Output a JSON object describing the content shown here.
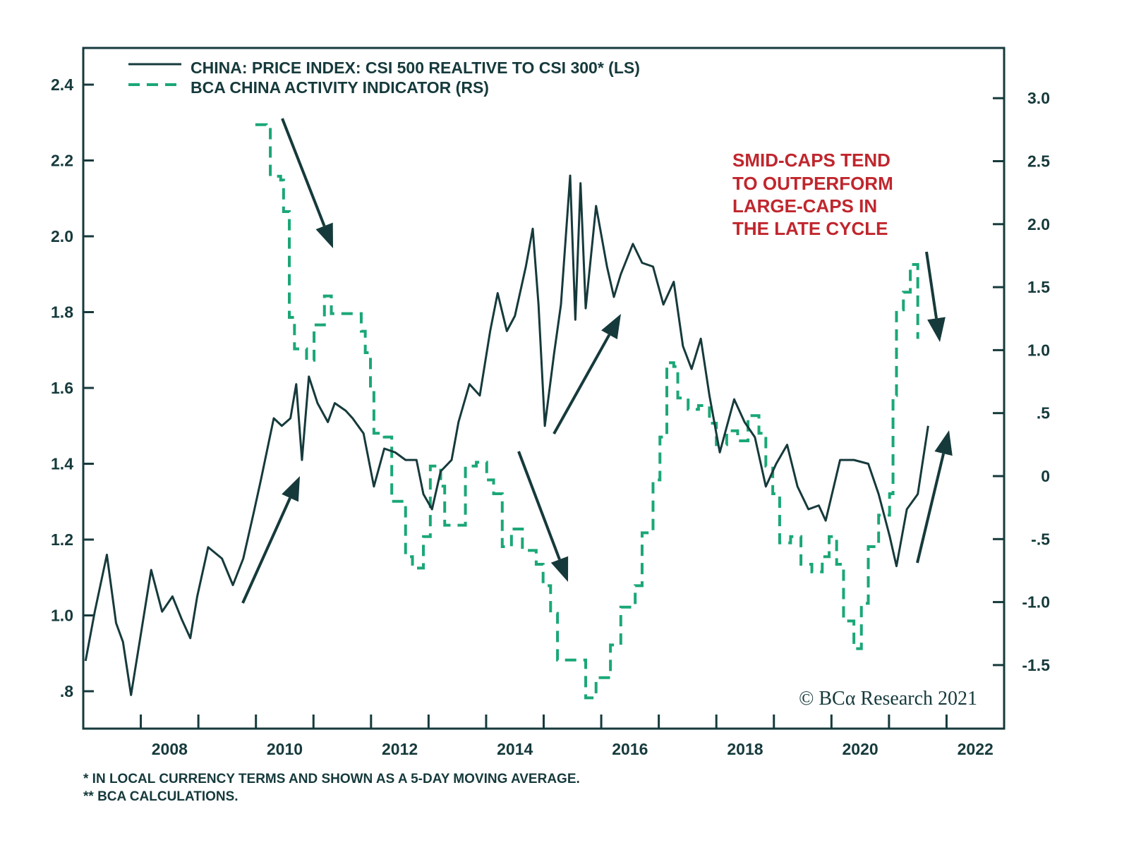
{
  "chart_data": {
    "type": "line",
    "title": "",
    "xlim": [
      2007,
      2023
    ],
    "x_ticks": [
      "2008",
      "2010",
      "2012",
      "2014",
      "2016",
      "2018",
      "2020",
      "2022"
    ],
    "ylim_left": [
      0.8,
      2.4
    ],
    "y_ticks_left": [
      "2.4",
      "2.2",
      "2.0",
      "1.8",
      "1.6",
      "1.4",
      "1.2",
      "1.0",
      ".8"
    ],
    "y_ticks_left_values": [
      2.4,
      2.2,
      2.0,
      1.8,
      1.6,
      1.4,
      1.2,
      1.0,
      0.8
    ],
    "ylim_right": [
      -1.5,
      3.0
    ],
    "y_ticks_right": [
      "3.0",
      "2.5",
      "2.0",
      "1.5",
      "1.0",
      ".5",
      "0",
      "-.5",
      "-1.0",
      "-1.5"
    ],
    "y_ticks_right_values": [
      3.0,
      2.5,
      2.0,
      1.5,
      1.0,
      0.5,
      0,
      -0.5,
      -1.0,
      -1.5
    ],
    "grid": false,
    "legend_position": "top-left",
    "series": [
      {
        "name": "CHINA: PRICE INDEX: CSI 500 REALTIVE TO CSI 300* (LS)",
        "axis": "left",
        "style": "solid",
        "color": "#163a3c",
        "x": [
          2007.04,
          2007.2,
          2007.41,
          2007.57,
          2007.69,
          2007.83,
          2008.0,
          2008.18,
          2008.37,
          2008.55,
          2008.71,
          2008.86,
          2008.98,
          2009.17,
          2009.41,
          2009.6,
          2009.78,
          2009.96,
          2010.09,
          2010.31,
          2010.45,
          2010.6,
          2010.7,
          2010.8,
          2010.92,
          2011.07,
          2011.25,
          2011.37,
          2011.56,
          2011.68,
          2011.87,
          2012.05,
          2012.23,
          2012.42,
          2012.6,
          2012.79,
          2012.91,
          2013.06,
          2013.21,
          2013.4,
          2013.52,
          2013.71,
          2013.89,
          2014.07,
          2014.2,
          2014.36,
          2014.5,
          2014.69,
          2014.81,
          2014.91,
          2015.02,
          2015.18,
          2015.3,
          2015.46,
          2015.55,
          2015.64,
          2015.73,
          2015.91,
          2016.1,
          2016.22,
          2016.34,
          2016.55,
          2016.71,
          2016.9,
          2017.08,
          2017.26,
          2017.42,
          2017.57,
          2017.73,
          2017.88,
          2018.06,
          2018.31,
          2018.49,
          2018.67,
          2018.86,
          2019.04,
          2019.23,
          2019.41,
          2019.6,
          2019.78,
          2019.9,
          2020.15,
          2020.39,
          2020.64,
          2020.82,
          2021.01,
          2021.13,
          2021.31,
          2021.5,
          2021.68
        ],
        "values": [
          0.88,
          1.01,
          1.16,
          0.98,
          0.93,
          0.79,
          0.95,
          1.12,
          1.01,
          1.05,
          0.99,
          0.94,
          1.05,
          1.18,
          1.15,
          1.08,
          1.15,
          1.27,
          1.36,
          1.52,
          1.5,
          1.52,
          1.61,
          1.41,
          1.63,
          1.56,
          1.51,
          1.56,
          1.54,
          1.52,
          1.48,
          1.34,
          1.44,
          1.43,
          1.41,
          1.41,
          1.32,
          1.28,
          1.38,
          1.41,
          1.51,
          1.61,
          1.58,
          1.75,
          1.85,
          1.75,
          1.79,
          1.92,
          2.02,
          1.82,
          1.5,
          1.69,
          1.82,
          2.16,
          1.78,
          2.14,
          1.81,
          2.08,
          1.92,
          1.84,
          1.9,
          1.98,
          1.93,
          1.92,
          1.82,
          1.88,
          1.71,
          1.65,
          1.73,
          1.58,
          1.43,
          1.57,
          1.51,
          1.47,
          1.34,
          1.4,
          1.45,
          1.34,
          1.28,
          1.29,
          1.25,
          1.41,
          1.41,
          1.4,
          1.32,
          1.21,
          1.13,
          1.28,
          1.32,
          1.5
        ]
      },
      {
        "name": "BCA CHINA ACTIVITY INDICATOR (RS)",
        "axis": "right",
        "style": "dashed",
        "color": "#1aa776",
        "x": [
          2009.99,
          2010.18,
          2010.25,
          2010.43,
          2010.48,
          2010.58,
          2010.67,
          2010.88,
          2011.01,
          2011.19,
          2011.31,
          2011.68,
          2011.83,
          2011.9,
          2011.99,
          2012.05,
          2012.23,
          2012.36,
          2012.6,
          2012.72,
          2012.91,
          2013.03,
          2013.21,
          2013.28,
          2013.58,
          2013.64,
          2013.83,
          2014.01,
          2014.13,
          2014.28,
          2014.44,
          2014.63,
          2014.87,
          2014.99,
          2015.12,
          2015.24,
          2015.61,
          2015.73,
          2015.91,
          2016.16,
          2016.34,
          2016.59,
          2016.71,
          2016.9,
          2017.02,
          2017.14,
          2017.26,
          2017.33,
          2017.51,
          2017.69,
          2017.88,
          2018.0,
          2018.18,
          2018.37,
          2018.55,
          2018.74,
          2018.86,
          2018.98,
          2019.1,
          2019.29,
          2019.47,
          2019.66,
          2019.84,
          2019.96,
          2020.09,
          2020.21,
          2020.39,
          2020.52,
          2020.64,
          2020.82,
          2021.01,
          2021.07,
          2021.13,
          2021.25,
          2021.37,
          2021.5
        ],
        "values": [
          2.79,
          2.77,
          2.38,
          2.35,
          2.1,
          1.26,
          1.01,
          0.92,
          1.2,
          1.43,
          1.29,
          1.29,
          1.15,
          0.98,
          0.7,
          0.34,
          0.31,
          -0.2,
          -0.64,
          -0.73,
          -0.48,
          0.08,
          -0.08,
          -0.39,
          -0.39,
          0.08,
          0.11,
          -0.03,
          -0.14,
          -0.56,
          -0.42,
          -0.59,
          -0.7,
          -0.87,
          -1.09,
          -1.46,
          -1.46,
          -1.76,
          -1.6,
          -1.34,
          -1.04,
          -0.87,
          -0.45,
          -0.03,
          0.31,
          0.9,
          0.87,
          0.62,
          0.53,
          0.56,
          0.42,
          0.25,
          0.36,
          0.28,
          0.48,
          0.34,
          0.08,
          -0.14,
          -0.53,
          -0.48,
          -0.7,
          -0.76,
          -0.64,
          -0.48,
          -0.7,
          -1.15,
          -1.37,
          -1.01,
          -0.56,
          -0.31,
          -0.14,
          0.64,
          1.32,
          1.46,
          1.68,
          1.09
        ]
      }
    ],
    "annotation": [
      "SMID-CAPS TEND",
      "TO OUTPERFORM",
      "LARGE-CAPS IN",
      "THE LATE CYCLE"
    ],
    "annotation_color": "#c0262d",
    "copyright": "© BCα Research 2021",
    "footnotes": [
      "*  IN LOCAL CURRENCY TERMS AND SHOWN AS A 5-DAY MOVING AVERAGE.",
      "** BCA CALCULATIONS."
    ]
  }
}
